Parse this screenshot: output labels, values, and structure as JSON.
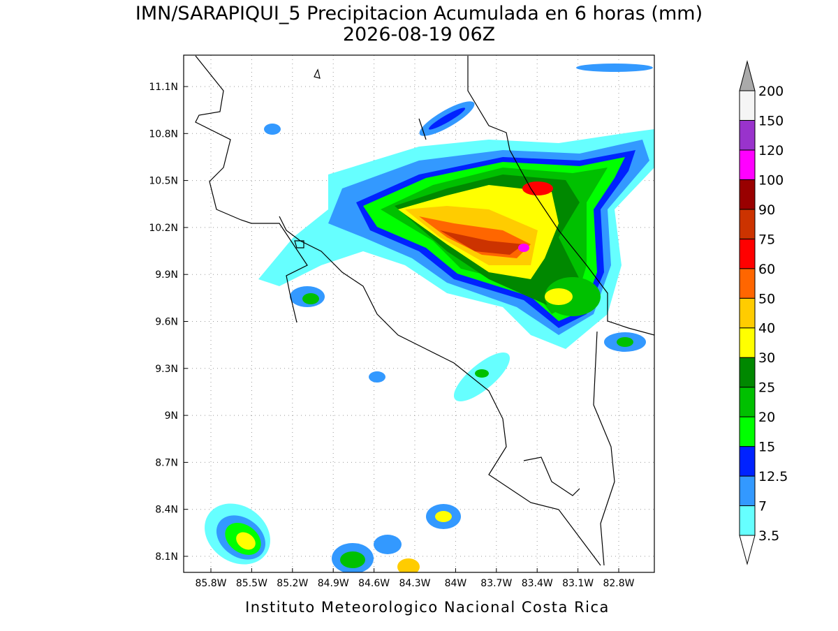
{
  "map": {
    "title": "IMN/SARAPIQUI_5 Precipitacion Acumulada en 6 horas (mm)",
    "subtitle": "2026-08-19 06Z",
    "lat_labels": [
      "11.1N",
      "10.8N",
      "10.5N",
      "10.2N",
      "9.9N",
      "9.6N",
      "9.3N",
      "9N",
      "8.7N",
      "8.4N",
      "8.1N"
    ],
    "lon_labels": [
      "85.8W",
      "85.5W",
      "85.2W",
      "84.9W",
      "84.6W",
      "84.3W",
      "84W",
      "83.7W",
      "83.4W",
      "83.1W",
      "82.8W"
    ],
    "colorbar": {
      "labels": [
        "3.5",
        "7",
        "12.5",
        "15",
        "20",
        "25",
        "30",
        "40",
        "50",
        "60",
        "75",
        "90",
        "100",
        "120",
        "150",
        "200"
      ],
      "colors": [
        "#66ffff",
        "#3399ff",
        "#0022ff",
        "#00ff00",
        "#00c000",
        "#008800",
        "#ffff00",
        "#ffcc00",
        "#ff6600",
        "#ff0000",
        "#cc3300",
        "#990000",
        "#ff00ff",
        "#9933cc",
        "#f5f5f5"
      ],
      "over_color": "#aaaaaa",
      "under_color": "#ffffff"
    },
    "footer": "Instituto Meteorologico Nacional Costa Rica"
  }
}
